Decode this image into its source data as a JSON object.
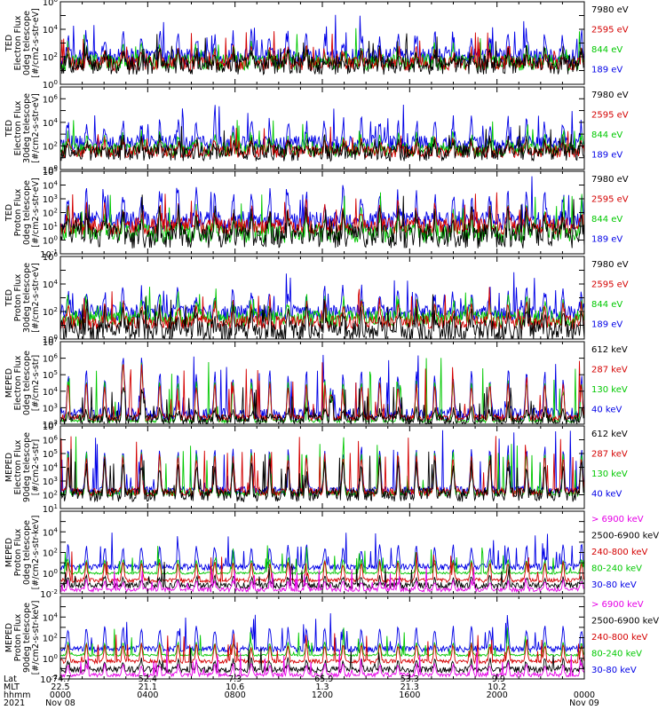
{
  "chart_data": {
    "type": "line",
    "x_range_hours": [
      0,
      24
    ],
    "panels": [
      {
        "ylabel": [
          "TED",
          "Electron Flux",
          "0deg telescope",
          "[#/cm2-s-str-eV]"
        ],
        "ylog": [
          0,
          6
        ],
        "ticks": [
          0,
          2,
          4,
          6
        ],
        "series": [
          {
            "name": "7980 eV",
            "color": "#000000",
            "base": 1.4,
            "peak": 2.2,
            "noise": 0.7
          },
          {
            "name": "2595 eV",
            "color": "#d40000",
            "base": 1.5,
            "peak": 2.4,
            "noise": 0.5
          },
          {
            "name": "844 eV",
            "color": "#00c800",
            "base": 1.6,
            "peak": 2.6,
            "noise": 0.6
          },
          {
            "name": "189 eV",
            "color": "#0000e6",
            "base": 2.0,
            "peak": 3.6,
            "noise": 0.6
          }
        ]
      },
      {
        "ylabel": [
          "TED",
          "Electron Flux",
          "30deg telescope",
          "[#/cm2-s-str-eV]"
        ],
        "ylog": [
          0,
          7
        ],
        "ticks": [
          0,
          2,
          4,
          6
        ],
        "series": [
          {
            "name": "7980 eV",
            "color": "#000000",
            "base": 1.4,
            "peak": 2.3,
            "noise": 0.7
          },
          {
            "name": "2595 eV",
            "color": "#d40000",
            "base": 1.5,
            "peak": 2.4,
            "noise": 0.5
          },
          {
            "name": "844 eV",
            "color": "#00c800",
            "base": 1.7,
            "peak": 2.8,
            "noise": 0.6
          },
          {
            "name": "189 eV",
            "color": "#0000e6",
            "base": 2.2,
            "peak": 4.0,
            "noise": 0.7
          }
        ]
      },
      {
        "ylabel": [
          "TED",
          "Proton Flux",
          "0deg telescope",
          "[#/cm2-s-str-eV]"
        ],
        "ylog": [
          -1,
          5
        ],
        "ticks": [
          -1,
          0,
          1,
          2,
          3,
          4,
          5
        ],
        "series": [
          {
            "name": "7980 eV",
            "color": "#000000",
            "base": 0.3,
            "peak": 1.8,
            "noise": 0.9
          },
          {
            "name": "2595 eV",
            "color": "#d40000",
            "base": 1.0,
            "peak": 2.2,
            "noise": 0.6
          },
          {
            "name": "844 eV",
            "color": "#00c800",
            "base": 0.5,
            "peak": 2.0,
            "noise": 0.7
          },
          {
            "name": "189 eV",
            "color": "#0000e6",
            "base": 1.4,
            "peak": 3.2,
            "noise": 0.7
          }
        ]
      },
      {
        "ylabel": [
          "TED",
          "Proton Flux",
          "30deg telescope",
          "[#/cm2-s-str-eV]"
        ],
        "ylog": [
          0,
          6
        ],
        "ticks": [
          0,
          2,
          4,
          6
        ],
        "series": [
          {
            "name": "7980 eV",
            "color": "#000000",
            "base": 0.6,
            "peak": 1.8,
            "noise": 0.8
          },
          {
            "name": "2595 eV",
            "color": "#d40000",
            "base": 1.2,
            "peak": 2.4,
            "noise": 0.5
          },
          {
            "name": "844 eV",
            "color": "#00c800",
            "base": 1.5,
            "peak": 2.8,
            "noise": 0.6
          },
          {
            "name": "189 eV",
            "color": "#0000e6",
            "base": 1.9,
            "peak": 3.4,
            "noise": 0.6
          }
        ]
      },
      {
        "ylabel": [
          "MEPED",
          "Electron Flux",
          "0deg telescope",
          "[#/cm2-s-str]"
        ],
        "ylog": [
          2,
          7
        ],
        "ticks": [
          2,
          3,
          4,
          5,
          6,
          7
        ],
        "series": [
          {
            "name": "612 keV",
            "color": "#000000",
            "base": 2.3,
            "peak": 2.8,
            "noise": 0.3
          },
          {
            "name": "287 keV",
            "color": "#d40000",
            "base": 2.4,
            "peak": 4.4,
            "noise": 0.2
          },
          {
            "name": "130 keV",
            "color": "#00c800",
            "base": 2.2,
            "peak": 4.6,
            "noise": 0.1
          },
          {
            "name": "40 keV",
            "color": "#0000e6",
            "base": 2.6,
            "peak": 5.0,
            "noise": 0.4
          }
        ]
      },
      {
        "ylabel": [
          "MEPED",
          "Electron Flux",
          "90deg telescope",
          "[#/cm2-s-str]"
        ],
        "ylog": [
          1,
          7
        ],
        "ticks": [
          1,
          2,
          3,
          4,
          5,
          6,
          7
        ],
        "series": [
          {
            "name": "612 keV",
            "color": "#000000",
            "base": 2.0,
            "peak": 4.2,
            "noise": 0.5
          },
          {
            "name": "287 keV",
            "color": "#d40000",
            "base": 2.2,
            "peak": 4.8,
            "noise": 0.3
          },
          {
            "name": "130 keV",
            "color": "#00c800",
            "base": 2.1,
            "peak": 5.0,
            "noise": 0.2
          },
          {
            "name": "40 keV",
            "color": "#0000e6",
            "base": 2.3,
            "peak": 5.3,
            "noise": 0.3
          }
        ]
      },
      {
        "ylabel": [
          "MEPED",
          "Proton Flux",
          "0deg telescope",
          "[#/cm2-s-str-keV]"
        ],
        "ylog": [
          -2,
          6
        ],
        "ticks": [
          -2,
          0,
          2,
          4
        ],
        "series": [
          {
            "name": "> 6900 keV",
            "color": "#e600e6",
            "base": -1.6,
            "peak": -0.8,
            "noise": 0.2
          },
          {
            "name": "2500-6900 keV",
            "color": "#000000",
            "base": -1.2,
            "peak": -0.4,
            "noise": 0.3
          },
          {
            "name": "240-800 keV",
            "color": "#d40000",
            "base": -0.7,
            "peak": 1.0,
            "noise": 0.2
          },
          {
            "name": "80-240 keV",
            "color": "#00c800",
            "base": 0.0,
            "peak": 1.3,
            "noise": 0.1
          },
          {
            "name": "30-80 keV",
            "color": "#0000e6",
            "base": 0.6,
            "peak": 2.6,
            "noise": 0.3
          }
        ]
      },
      {
        "ylabel": [
          "MEPED",
          "Proton Flux",
          "90deg telescope",
          "[#/cm2-s-str-keV]"
        ],
        "ylog": [
          -2,
          6
        ],
        "ticks": [
          -2,
          0,
          2,
          4
        ],
        "series": [
          {
            "name": "> 6900 keV",
            "color": "#e600e6",
            "base": -1.6,
            "peak": -0.6,
            "noise": 0.2
          },
          {
            "name": "2500-6900 keV",
            "color": "#000000",
            "base": -1.1,
            "peak": -0.2,
            "noise": 0.3
          },
          {
            "name": "240-800 keV",
            "color": "#d40000",
            "base": -0.3,
            "peak": 1.3,
            "noise": 0.2
          },
          {
            "name": "80-240 keV",
            "color": "#00c800",
            "base": 0.3,
            "peak": 1.5,
            "noise": 0.1
          },
          {
            "name": "30-80 keV",
            "color": "#0000e6",
            "base": 0.9,
            "peak": 2.9,
            "noise": 0.3
          }
        ]
      }
    ],
    "xaxis": {
      "row_labels": [
        "Lat",
        "MLT",
        "hhmm",
        "2021"
      ],
      "ticks": [
        {
          "hour": 0,
          "lat": "-74.7",
          "mlt": "22.5",
          "hhmm": "0000",
          "date": "Nov 08"
        },
        {
          "hour": 4,
          "lat": "52.4",
          "mlt": "21.1",
          "hhmm": "0400",
          "date": ""
        },
        {
          "hour": 8,
          "lat": "7.3",
          "mlt": "10.6",
          "hhmm": "0800",
          "date": ""
        },
        {
          "hour": 12,
          "lat": "-65.9",
          "mlt": "1.3",
          "hhmm": "1200",
          "date": ""
        },
        {
          "hour": 16,
          "lat": "53.3",
          "mlt": "21.3",
          "hhmm": "1600",
          "date": ""
        },
        {
          "hour": 20,
          "lat": "-9.9",
          "mlt": "10.2",
          "hhmm": "2000",
          "date": ""
        },
        {
          "hour": 24,
          "lat": "",
          "mlt": "",
          "hhmm": "0000",
          "date": "Nov 09"
        }
      ]
    }
  }
}
